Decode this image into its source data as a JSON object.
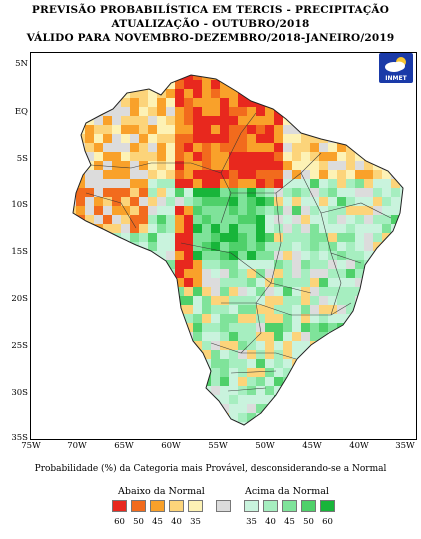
{
  "header": {
    "line1": "PREVISÃO PROBABILÍSTICA EM TERCIS - PRECIPITAÇÃO",
    "line2": "ATUALIZAÇÃO - OUTUBRO/2018",
    "line3": "VÁLIDO PARA NOVEMBRO-DEZEMBRO/2018-JANEIRO/2019"
  },
  "logo": {
    "label": "INMET",
    "icon": "cloud-sun-icon"
  },
  "axes": {
    "lat": [
      "5N",
      "EQ",
      "5S",
      "10S",
      "15S",
      "20S",
      "25S",
      "30S",
      "35S"
    ],
    "lon": [
      "75W",
      "70W",
      "65W",
      "60W",
      "55W",
      "50W",
      "45W",
      "40W",
      "35W"
    ]
  },
  "caption": "Probabilidade (%) da Categoria mais Provável, desconsiderando-se a Normal",
  "legend": {
    "below": {
      "title": "Abaixo da Normal",
      "items": [
        {
          "label": "60",
          "color": "#e8281e"
        },
        {
          "label": "50",
          "color": "#f26b1d"
        },
        {
          "label": "45",
          "color": "#f9a12a"
        },
        {
          "label": "40",
          "color": "#fcd47a"
        },
        {
          "label": "35",
          "color": "#fdf2b5"
        }
      ]
    },
    "normal_color": "#dcdcdc",
    "above": {
      "title": "Acima da Normal",
      "items": [
        {
          "label": "35",
          "color": "#c9f3dd"
        },
        {
          "label": "40",
          "color": "#a6eec0"
        },
        {
          "label": "45",
          "color": "#7fe39a"
        },
        {
          "label": "50",
          "color": "#4fd06a"
        },
        {
          "label": "60",
          "color": "#18b53a"
        }
      ]
    }
  }
}
